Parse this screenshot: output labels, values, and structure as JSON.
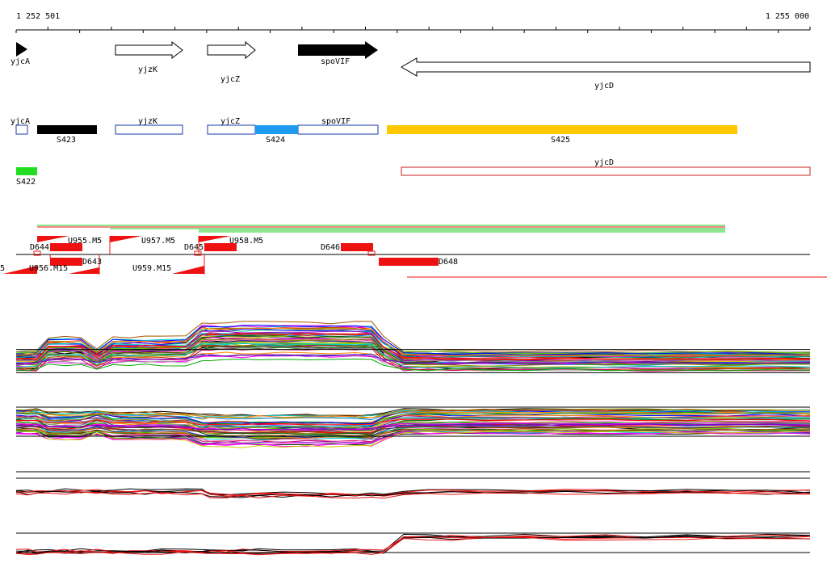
{
  "ruler": {
    "start_label": "1 252 501",
    "end_label": "1 255 000"
  },
  "genes": [
    {
      "name": "yjcA",
      "strand": "+",
      "style": "filled"
    },
    {
      "name": "yjzK",
      "strand": "+",
      "style": "outline"
    },
    {
      "name": "yjcZ",
      "strand": "+",
      "style": "outline"
    },
    {
      "name": "spoVIF",
      "strand": "+",
      "style": "filled"
    },
    {
      "name": "yjcD",
      "strand": "-",
      "style": "outline"
    }
  ],
  "segment_track": {
    "outline_boxes": [
      "yjcA",
      "yjzK",
      "yjcZ",
      "spoVIF"
    ],
    "segments": [
      {
        "id": "S423",
        "color": "#000000"
      },
      {
        "id": "S424",
        "color": "#1e9bf0"
      },
      {
        "id": "S425",
        "color": "#ffc800"
      }
    ]
  },
  "track3": {
    "segments": [
      {
        "id": "S422",
        "color": "#22dd22"
      }
    ],
    "outline_boxes": [
      {
        "name": "yjcD",
        "color": "#cc2222"
      }
    ]
  },
  "features": {
    "upper_labels": [
      "D644",
      "U955.M5",
      "U957.M5",
      "D645",
      "U958.M5",
      "D646"
    ],
    "lower_labels": [
      "5",
      "U956.M15",
      "D643",
      "U959.M15",
      "D648"
    ]
  },
  "colors": {
    "feature_red": "#ee1111",
    "line_green": "#22cc22",
    "axis": "#000000"
  }
}
